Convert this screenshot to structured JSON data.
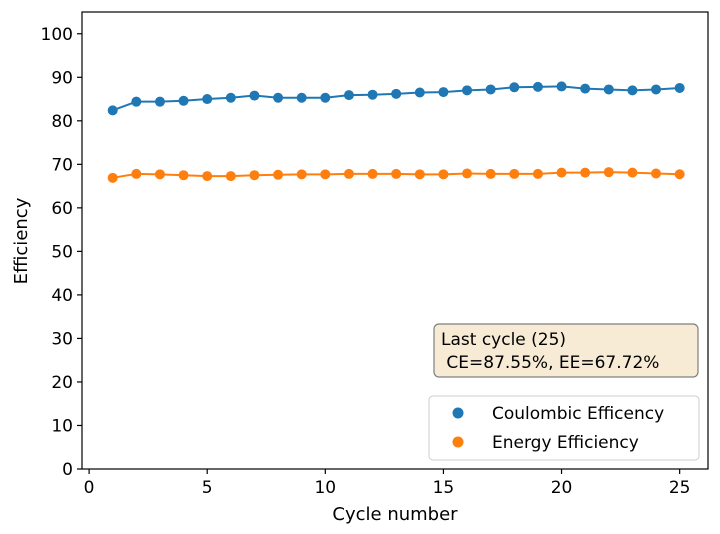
{
  "chart_data": {
    "type": "line",
    "xlabel": "Cycle number",
    "ylabel": "Efficiency",
    "xlim": [
      -0.3,
      26.2
    ],
    "ylim": [
      0,
      105
    ],
    "xticks": [
      "0",
      "5",
      "10",
      "15",
      "20",
      "25"
    ],
    "yticks": [
      "0",
      "10",
      "20",
      "30",
      "40",
      "50",
      "60",
      "70",
      "80",
      "90",
      "100"
    ],
    "x": [
      1,
      2,
      3,
      4,
      5,
      6,
      7,
      8,
      9,
      10,
      11,
      12,
      13,
      14,
      15,
      16,
      17,
      18,
      19,
      20,
      21,
      22,
      23,
      24,
      25
    ],
    "series": [
      {
        "name": "Coulombic Efficency",
        "color": "#1f77b4",
        "values": [
          82.4,
          84.4,
          84.4,
          84.6,
          85.0,
          85.3,
          85.8,
          85.3,
          85.3,
          85.3,
          85.9,
          86.0,
          86.2,
          86.5,
          86.6,
          87.0,
          87.2,
          87.7,
          87.8,
          87.9,
          87.4,
          87.2,
          87.0,
          87.2,
          87.55
        ]
      },
      {
        "name": "Energy Efficiency",
        "color": "#ff7f0e",
        "values": [
          66.9,
          67.8,
          67.7,
          67.5,
          67.3,
          67.3,
          67.5,
          67.6,
          67.7,
          67.7,
          67.8,
          67.8,
          67.8,
          67.7,
          67.7,
          67.9,
          67.8,
          67.8,
          67.8,
          68.1,
          68.1,
          68.2,
          68.1,
          67.9,
          67.72
        ]
      }
    ],
    "annotation": {
      "line1": "Last cycle (25)",
      "line2": " CE=87.55%, EE=67.72%",
      "background": "#f8ebd6",
      "border": "#7f7f7f"
    },
    "legend": {
      "placement": "lower-right",
      "labels": [
        "Coulombic Efficency",
        "Energy Efficiency"
      ]
    },
    "grid": false
  }
}
